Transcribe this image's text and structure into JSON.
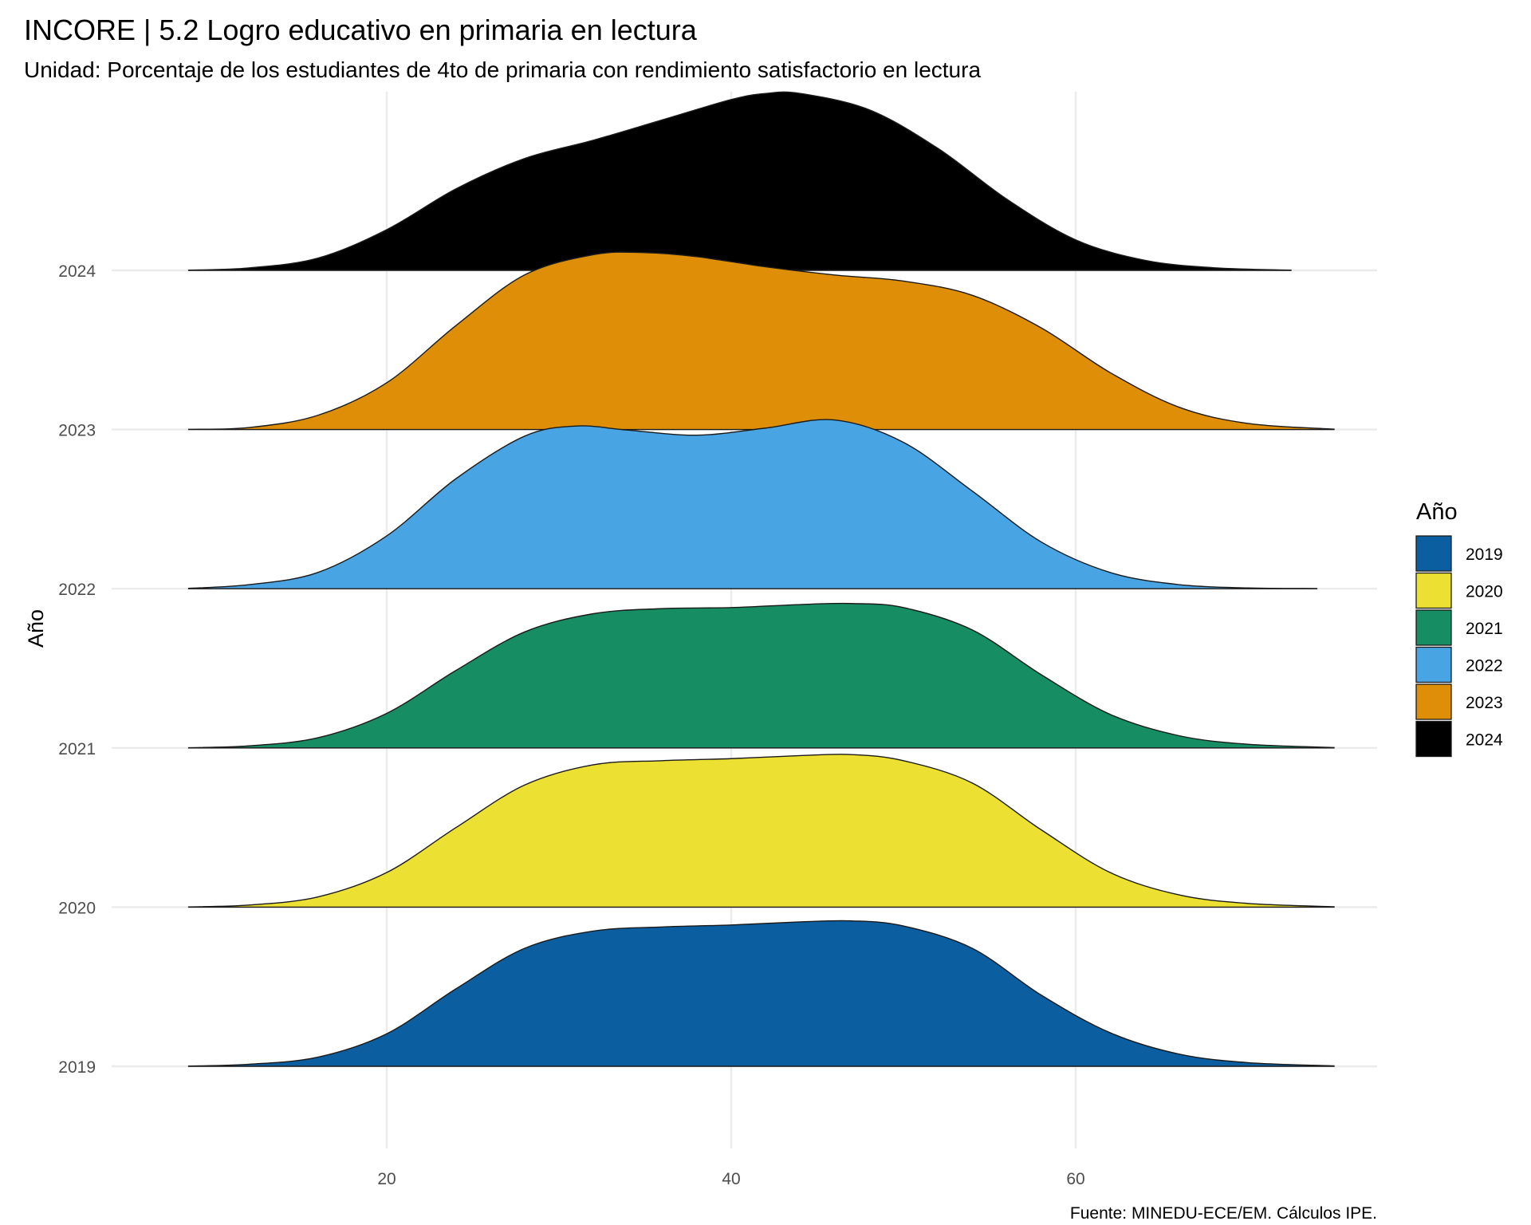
{
  "chart_data": {
    "type": "ridgeline",
    "title": "INCORE | 5.2 Logro educativo en primaria en lectura",
    "subtitle": "Unidad: Porcentaje de los estudiantes de 4to de primaria con rendimiento satisfactorio en lectura",
    "ylabel": "Año",
    "xlabel": "",
    "caption": "Fuente: MINEDU-ECE/EM. Cálculos IPE.",
    "x_ticks": [
      20,
      40,
      60
    ],
    "xlim": [
      4.2,
      79.2
    ],
    "grid": true,
    "legend": {
      "title": "Año",
      "position": "right"
    },
    "series": [
      {
        "name": "2019",
        "color": "#0b5ea0",
        "x": [
          8.5,
          12,
          16,
          20,
          24,
          28,
          32,
          36,
          40,
          44,
          47,
          50,
          54,
          58,
          62,
          66,
          70,
          75
        ],
        "density": [
          0.001,
          0.01,
          0.045,
          0.16,
          0.38,
          0.58,
          0.665,
          0.685,
          0.695,
          0.71,
          0.715,
          0.69,
          0.58,
          0.35,
          0.165,
          0.06,
          0.018,
          0.002
        ]
      },
      {
        "name": "2020",
        "color": "#ece133",
        "x": [
          8.5,
          12,
          16,
          20,
          24,
          28,
          32,
          36,
          40,
          44,
          47,
          50,
          54,
          58,
          62,
          66,
          70,
          75
        ],
        "density": [
          0.001,
          0.01,
          0.05,
          0.17,
          0.39,
          0.6,
          0.7,
          0.72,
          0.73,
          0.745,
          0.75,
          0.72,
          0.61,
          0.38,
          0.17,
          0.06,
          0.018,
          0.002
        ]
      },
      {
        "name": "2021",
        "color": "#168d62",
        "x": [
          8.5,
          12,
          16,
          20,
          24,
          28,
          32,
          36,
          40,
          44,
          47,
          50,
          54,
          58,
          62,
          66,
          70,
          75
        ],
        "density": [
          0.001,
          0.01,
          0.05,
          0.17,
          0.38,
          0.57,
          0.66,
          0.685,
          0.69,
          0.705,
          0.71,
          0.69,
          0.58,
          0.36,
          0.165,
          0.06,
          0.018,
          0.002
        ]
      },
      {
        "name": "2022",
        "color": "#49a4e3",
        "x": [
          8.5,
          12,
          16,
          20,
          24,
          28,
          31,
          34,
          38,
          42,
          46,
          50,
          54,
          58,
          62,
          66,
          70,
          74
        ],
        "density": [
          0.002,
          0.02,
          0.08,
          0.26,
          0.54,
          0.75,
          0.8,
          0.78,
          0.755,
          0.79,
          0.83,
          0.72,
          0.48,
          0.23,
          0.08,
          0.02,
          0.004,
          0.001
        ]
      },
      {
        "name": "2023",
        "color": "#de8f07",
        "x": [
          8.5,
          12,
          16,
          20,
          24,
          28,
          32,
          35,
          38,
          42,
          46,
          50,
          54,
          58,
          62,
          66,
          70,
          75
        ],
        "density": [
          0.001,
          0.01,
          0.07,
          0.23,
          0.51,
          0.76,
          0.86,
          0.87,
          0.85,
          0.8,
          0.76,
          0.73,
          0.66,
          0.5,
          0.28,
          0.11,
          0.03,
          0.002
        ]
      },
      {
        "name": "2024",
        "color": "#000000",
        "x": [
          8.5,
          12,
          16,
          20,
          24,
          28,
          32,
          36,
          40,
          42,
          44,
          48,
          52,
          56,
          60,
          64,
          68,
          72.5
        ],
        "density": [
          0.001,
          0.012,
          0.06,
          0.2,
          0.4,
          0.55,
          0.64,
          0.74,
          0.84,
          0.87,
          0.87,
          0.79,
          0.6,
          0.35,
          0.15,
          0.05,
          0.013,
          0.001
        ]
      }
    ]
  }
}
